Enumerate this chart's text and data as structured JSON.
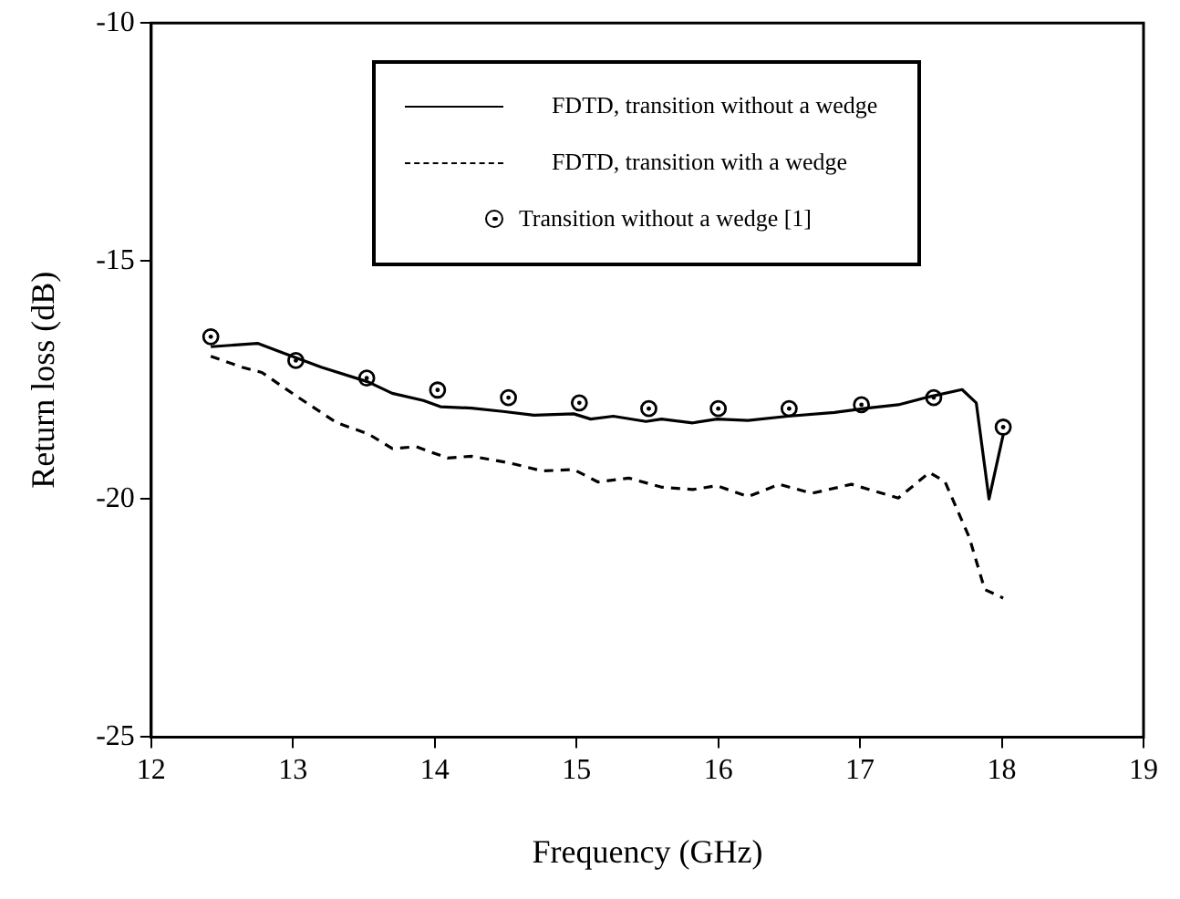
{
  "chart_data": {
    "type": "line",
    "xlabel": "Frequency (GHz)",
    "ylabel": "Return loss (dB)",
    "xlim": [
      12,
      19
    ],
    "xticks": [
      12,
      13,
      14,
      15,
      16,
      17,
      18,
      19
    ],
    "ylim": [
      -25,
      -10
    ],
    "yticks": [
      -25,
      -20,
      -15,
      -10
    ],
    "grid": false,
    "legend": "top",
    "series": [
      {
        "name": "FDTD, transition without a wedge",
        "color": "#000000",
        "line_style": "solid",
        "marker": "none",
        "x": [
          12.42,
          12.75,
          12.92,
          13.2,
          13.53,
          13.7,
          13.92,
          14.04,
          14.26,
          14.48,
          14.7,
          14.98,
          15.1,
          15.26,
          15.49,
          15.6,
          15.82,
          15.99,
          16.21,
          16.49,
          16.82,
          17.05,
          17.27,
          17.49,
          17.72,
          17.82,
          17.91,
          18.01
        ],
        "values": [
          -16.8,
          -16.73,
          -16.92,
          -17.23,
          -17.54,
          -17.78,
          -17.93,
          -18.06,
          -18.09,
          -18.16,
          -18.24,
          -18.21,
          -18.32,
          -18.26,
          -18.37,
          -18.32,
          -18.4,
          -18.32,
          -18.35,
          -18.26,
          -18.18,
          -18.09,
          -18.02,
          -17.85,
          -17.7,
          -17.98,
          -20.0,
          -18.65
        ]
      },
      {
        "name": "FDTD, transition with a wedge",
        "color": "#000000",
        "line_style": "dashed",
        "marker": "none",
        "x": [
          12.42,
          12.64,
          12.78,
          13.03,
          13.31,
          13.53,
          13.7,
          13.87,
          14.09,
          14.26,
          14.54,
          14.76,
          14.98,
          15.15,
          15.37,
          15.6,
          15.82,
          15.99,
          16.21,
          16.43,
          16.66,
          16.94,
          17.27,
          17.49,
          17.6,
          17.77,
          17.88,
          18.01
        ],
        "values": [
          -17.0,
          -17.23,
          -17.34,
          -17.85,
          -18.4,
          -18.63,
          -18.94,
          -18.9,
          -19.14,
          -19.1,
          -19.25,
          -19.41,
          -19.38,
          -19.64,
          -19.56,
          -19.75,
          -19.8,
          -19.72,
          -19.95,
          -19.69,
          -19.88,
          -19.69,
          -19.98,
          -19.44,
          -19.64,
          -20.8,
          -21.9,
          -22.08
        ]
      },
      {
        "name": "Transition without a wedge [1]",
        "type": "scatter",
        "color": "#000000",
        "marker": "circle",
        "x": [
          12.42,
          13.02,
          13.52,
          14.02,
          14.52,
          15.02,
          15.51,
          16.0,
          16.5,
          17.01,
          17.52,
          18.01
        ],
        "values": [
          -16.59,
          -17.09,
          -17.46,
          -17.71,
          -17.87,
          -17.98,
          -18.1,
          -18.1,
          -18.1,
          -18.02,
          -17.87,
          -18.49
        ]
      }
    ]
  }
}
